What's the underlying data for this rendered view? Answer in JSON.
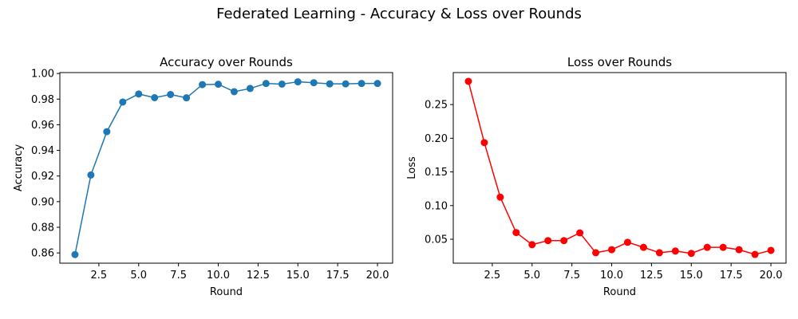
{
  "figure": {
    "suptitle": "Federated Learning - Accuracy & Loss over Rounds"
  },
  "chart_data": [
    {
      "type": "line",
      "title": "Accuracy over Rounds",
      "xlabel": "Round",
      "ylabel": "Accuracy",
      "xlim": [
        0.05,
        20.95
      ],
      "ylim": [
        0.852,
        1.0007
      ],
      "xticks": [
        2.5,
        5.0,
        7.5,
        10.0,
        12.5,
        15.0,
        17.5,
        20.0
      ],
      "xtick_labels": [
        "2.5",
        "5.0",
        "7.5",
        "10.0",
        "12.5",
        "15.0",
        "17.5",
        "20.0"
      ],
      "yticks": [
        0.86,
        0.88,
        0.9,
        0.92,
        0.94,
        0.96,
        0.98,
        1.0
      ],
      "ytick_labels": [
        "0.86",
        "0.88",
        "0.90",
        "0.92",
        "0.94",
        "0.96",
        "0.98",
        "1.00"
      ],
      "grid": false,
      "series": [
        {
          "color": "#1f77b4",
          "marker": "circle",
          "x": [
            1,
            2,
            3,
            4,
            5,
            6,
            7,
            8,
            9,
            10,
            11,
            12,
            13,
            14,
            15,
            16,
            17,
            18,
            19,
            20
          ],
          "y": [
            0.8587,
            0.9208,
            0.9546,
            0.9777,
            0.984,
            0.9811,
            0.9836,
            0.981,
            0.9913,
            0.9916,
            0.9858,
            0.9883,
            0.9922,
            0.9917,
            0.9935,
            0.9928,
            0.9919,
            0.9919,
            0.9922,
            0.9922
          ]
        }
      ]
    },
    {
      "type": "line",
      "title": "Loss over Rounds",
      "xlabel": "Round",
      "ylabel": "Loss",
      "xlim": [
        0.05,
        20.95
      ],
      "ylim": [
        0.0145,
        0.2975
      ],
      "xticks": [
        2.5,
        5.0,
        7.5,
        10.0,
        12.5,
        15.0,
        17.5,
        20.0
      ],
      "xtick_labels": [
        "2.5",
        "5.0",
        "7.5",
        "10.0",
        "12.5",
        "15.0",
        "17.5",
        "20.0"
      ],
      "yticks": [
        0.05,
        0.1,
        0.15,
        0.2,
        0.25
      ],
      "ytick_labels": [
        "0.05",
        "0.10",
        "0.15",
        "0.20",
        "0.25"
      ],
      "grid": false,
      "series": [
        {
          "color": "#ff0000",
          "marker": "circle",
          "x": [
            1,
            2,
            3,
            4,
            5,
            6,
            7,
            8,
            9,
            10,
            11,
            12,
            13,
            14,
            15,
            16,
            17,
            18,
            19,
            20
          ],
          "y": [
            0.2845,
            0.1935,
            0.1125,
            0.06,
            0.042,
            0.048,
            0.048,
            0.0595,
            0.03,
            0.0345,
            0.0455,
            0.038,
            0.03,
            0.0325,
            0.029,
            0.038,
            0.038,
            0.0345,
            0.0275,
            0.0335
          ]
        }
      ]
    }
  ]
}
